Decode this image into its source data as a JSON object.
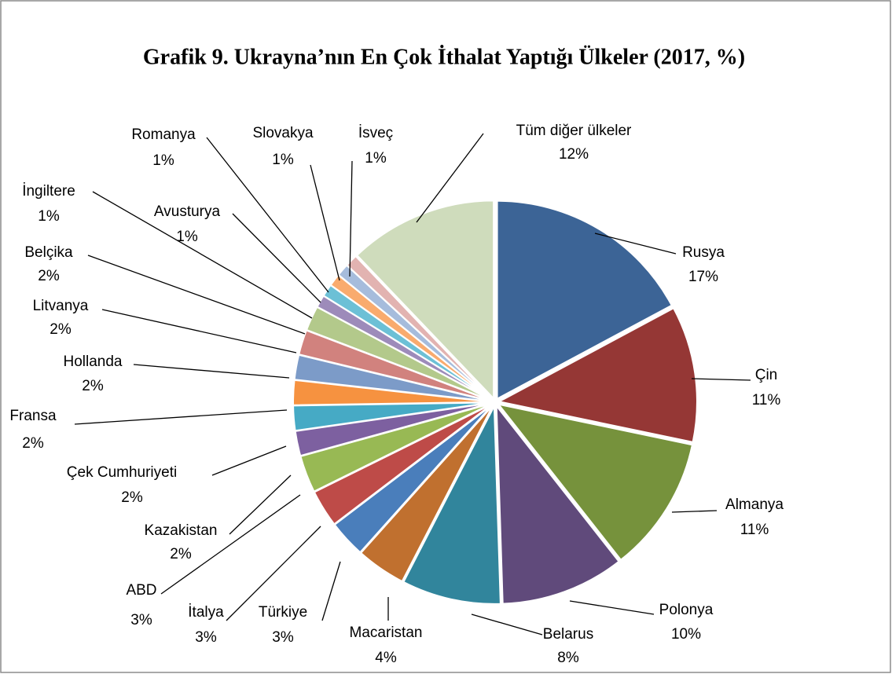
{
  "chart_data": {
    "type": "pie",
    "title": "Grafik 9. Ukrayna’nın En Çok İthalat Yaptığı Ülkeler (2017, %)",
    "categories": [
      "Rusya",
      "Çin",
      "Almanya",
      "Polonya",
      "Belarus",
      "Macaristan",
      "Türkiye",
      "İtalya",
      "ABD",
      "Kazakistan",
      "Çek Cumhuriyeti",
      "Fransa",
      "Hollanda",
      "Litvanya",
      "Belçika",
      "İngiltere",
      "Avusturya",
      "Romanya",
      "Slovakya",
      "İsveç",
      "Tüm diğer ülkeler"
    ],
    "values": [
      17,
      11,
      11,
      10,
      8,
      4,
      3,
      3,
      3,
      2,
      2,
      2,
      2,
      2,
      2,
      1,
      1,
      1,
      1,
      1,
      12
    ],
    "value_labels": [
      "17%",
      "11%",
      "11%",
      "10%",
      "8%",
      "4%",
      "3%",
      "3%",
      "3%",
      "2%",
      "2%",
      "2%",
      "2%",
      "2%",
      "2%",
      "1%",
      "1%",
      "1%",
      "1%",
      "1%",
      "12%"
    ],
    "colors": [
      "#3c6496",
      "#953735",
      "#76923c",
      "#604a7b",
      "#31859c",
      "#c0702f",
      "#4a7ebb",
      "#be4b48",
      "#98b954",
      "#7d60a0",
      "#46aac5",
      "#f69240",
      "#7c9bc8",
      "#d1827e",
      "#b3c98b",
      "#9d8bba",
      "#6cc0d6",
      "#f9ab6e",
      "#a6bcdc",
      "#e2b3b1",
      "#cfdcbc"
    ]
  }
}
